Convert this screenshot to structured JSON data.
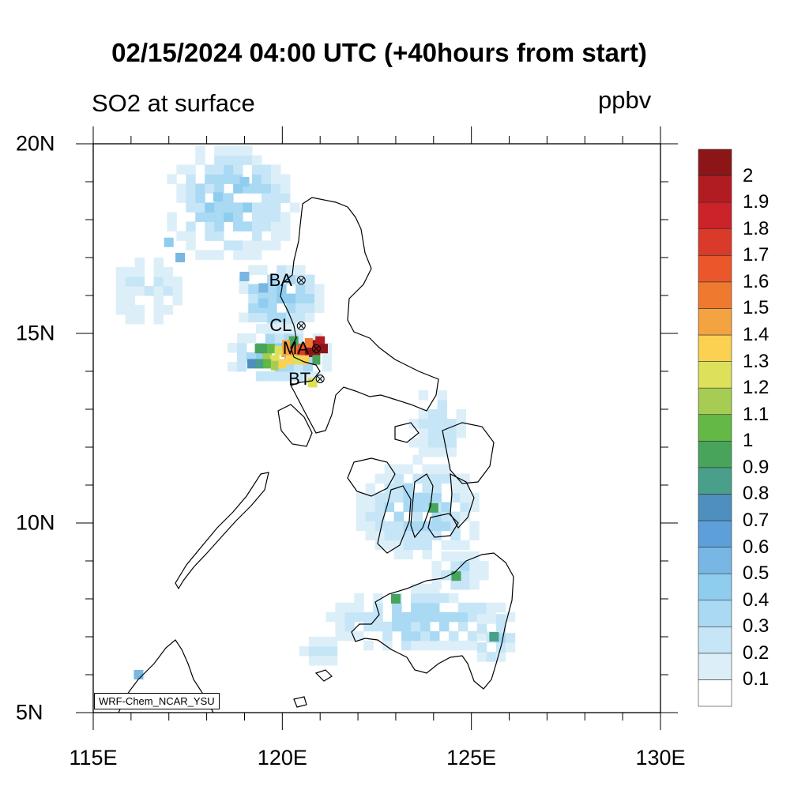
{
  "title": "02/15/2024 04:00 UTC (+40hours from start)",
  "subtitle_left": "SO2 at surface",
  "units": "ppbv",
  "model_label": "WRF-Chem_NCAR_YSU",
  "map": {
    "lon_range": [
      115,
      130
    ],
    "lat_range": [
      5,
      20
    ],
    "lon_ticks": [
      {
        "value": 115,
        "label": "115E"
      },
      {
        "value": 120,
        "label": "120E"
      },
      {
        "value": 125,
        "label": "125E"
      },
      {
        "value": 130,
        "label": "130E"
      }
    ],
    "lat_ticks": [
      {
        "value": 20,
        "label": "20N"
      },
      {
        "value": 15,
        "label": "15N"
      },
      {
        "value": 10,
        "label": "10N"
      },
      {
        "value": 5,
        "label": "5N"
      }
    ]
  },
  "sites": [
    {
      "code": "BA",
      "lon": 120.5,
      "lat": 16.4
    },
    {
      "code": "CL",
      "lon": 120.5,
      "lat": 15.2
    },
    {
      "code": "MA",
      "lon": 120.9,
      "lat": 14.6
    },
    {
      "code": "BT",
      "lon": 121.0,
      "lat": 13.8
    }
  ],
  "colorbar": {
    "levels": [
      "0.1",
      "0.2",
      "0.3",
      "0.4",
      "0.5",
      "0.6",
      "0.7",
      "0.8",
      "0.9",
      "1",
      "1.1",
      "1.2",
      "1.3",
      "1.4",
      "1.5",
      "1.6",
      "1.7",
      "1.8",
      "1.9",
      "2"
    ],
    "colors": [
      "#ffffff",
      "#dceff9",
      "#c6e6f7",
      "#a9d9f3",
      "#8fcdef",
      "#78b6e4",
      "#5d9fd8",
      "#4e8fbf",
      "#4a9f8a",
      "#47a45a",
      "#63b846",
      "#a6cc54",
      "#dde05a",
      "#fbd151",
      "#f3a33f",
      "#ef7a2f",
      "#e9572a",
      "#d93a2a",
      "#cc2229",
      "#b31b22",
      "#8c1518"
    ]
  },
  "chart_data": {
    "type": "heatmap",
    "title": "02/15/2024 04:00 UTC (+40hours from start)",
    "variable": "SO2 at surface",
    "units": "ppbv",
    "xlabel": "",
    "ylabel": "",
    "xlim": [
      115,
      130
    ],
    "ylim": [
      5,
      20
    ],
    "cells_lon_lat_value": [
      [
        117.3,
        17.0,
        0.5
      ],
      [
        117.0,
        17.4,
        0.45
      ],
      [
        118.3,
        18.6,
        0.4
      ],
      [
        119.0,
        19.0,
        0.4
      ],
      [
        119.0,
        16.5,
        0.55
      ],
      [
        119.5,
        16.2,
        0.5
      ],
      [
        119.5,
        15.8,
        0.45
      ],
      [
        119.6,
        14.4,
        1.1
      ],
      [
        119.8,
        14.3,
        1.2
      ],
      [
        120.1,
        14.5,
        1.4
      ],
      [
        120.5,
        14.6,
        1.6
      ],
      [
        120.8,
        14.7,
        2.0
      ],
      [
        121.0,
        14.8,
        1.9
      ],
      [
        120.3,
        14.8,
        0.9
      ],
      [
        119.4,
        14.6,
        0.9
      ],
      [
        119.2,
        14.2,
        0.7
      ],
      [
        120.8,
        13.7,
        1.2
      ],
      [
        124.0,
        10.4,
        0.9
      ],
      [
        124.6,
        8.6,
        0.9
      ],
      [
        123.0,
        8.0,
        0.9
      ],
      [
        125.6,
        7.0,
        0.8
      ],
      [
        116.2,
        6.0,
        0.5
      ]
    ]
  }
}
